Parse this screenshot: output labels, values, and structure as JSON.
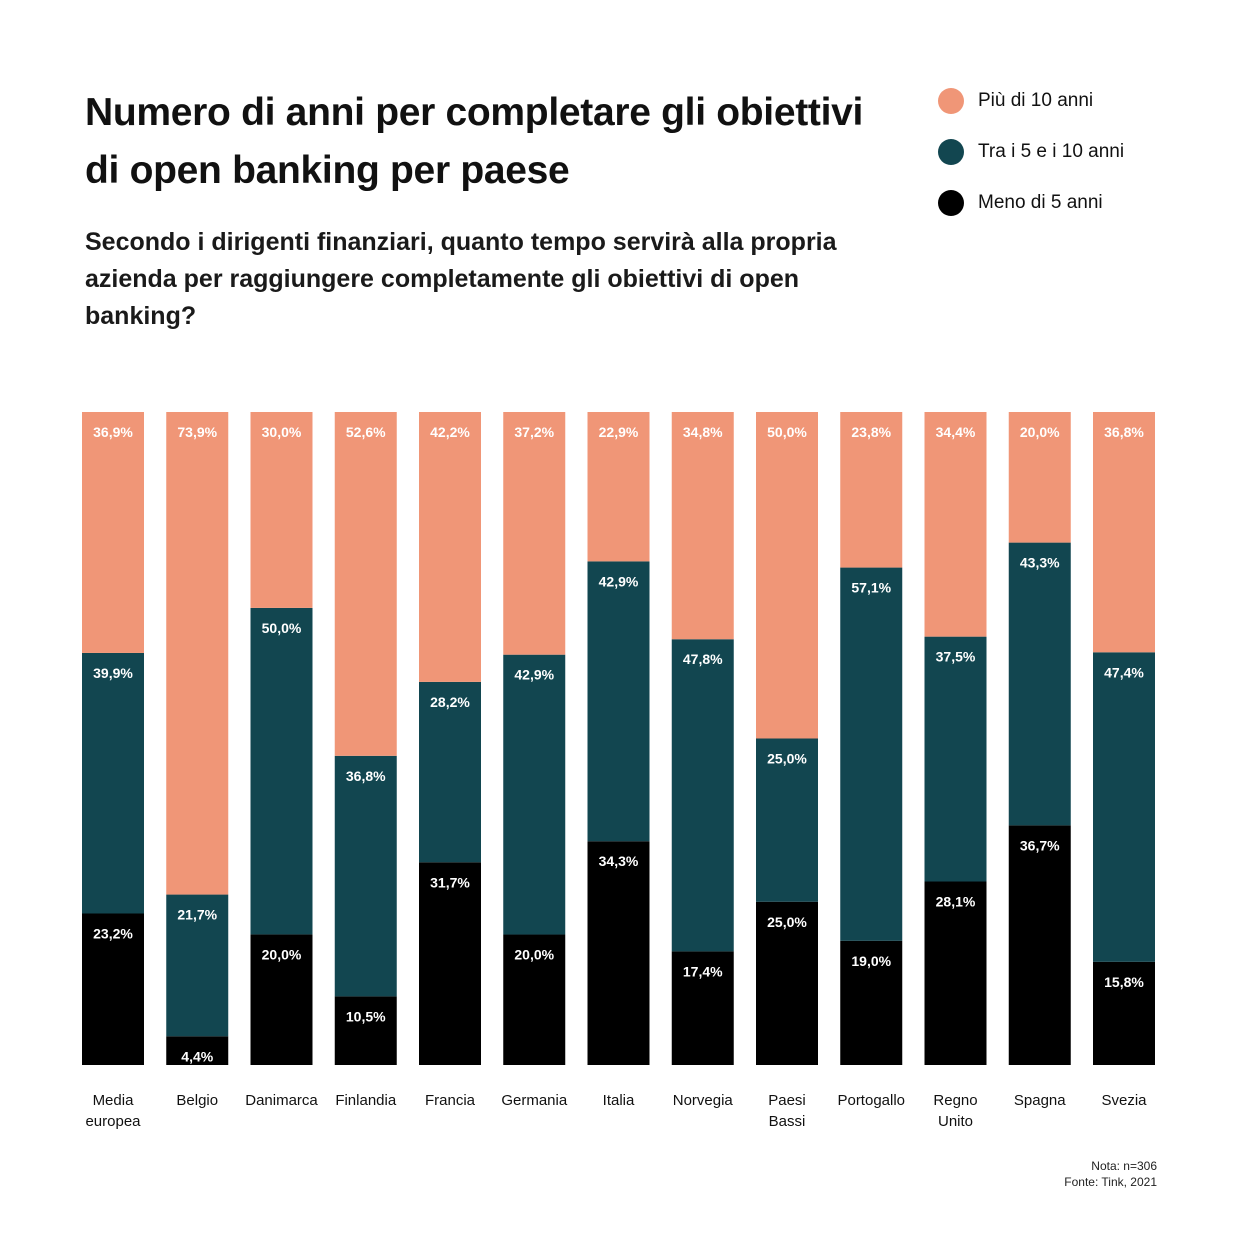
{
  "title": "Numero di anni per completare gli obiettivi di open banking per paese",
  "subtitle": "Secondo i dirigenti finanziari, quanto tempo servirà alla propria azienda per raggiungere completamente gli obiettivi di open banking?",
  "legend": [
    {
      "label": "Più di 10 anni",
      "color": "#f09677"
    },
    {
      "label": "Tra i 5 e i 10 anni",
      "color": "#124650"
    },
    {
      "label": "Meno di 5 anni",
      "color": "#000000"
    }
  ],
  "note": "Nota: n=306",
  "source": "Fonte: Tink, 2021",
  "chart_data": {
    "type": "bar",
    "stacked": true,
    "percent_stacked": true,
    "ylim": [
      0,
      100
    ],
    "categories": [
      [
        "Media",
        "europea"
      ],
      [
        "Belgio"
      ],
      [
        "Danimarca"
      ],
      [
        "Finlandia"
      ],
      [
        "Francia"
      ],
      [
        "Germania"
      ],
      [
        "Italia"
      ],
      [
        "Norvegia"
      ],
      [
        "Paesi",
        "Bassi"
      ],
      [
        "Portogallo"
      ],
      [
        "Regno",
        "Unito"
      ],
      [
        "Spagna"
      ],
      [
        "Svezia"
      ]
    ],
    "series": [
      {
        "name": "Meno di 5 anni",
        "color": "#000000",
        "values": [
          23.2,
          4.4,
          20.0,
          10.5,
          31.7,
          20.0,
          34.3,
          17.4,
          25.0,
          19.0,
          28.1,
          36.7,
          15.8
        ],
        "labels": [
          "23,2%",
          "4,4%",
          "20,0%",
          "10,5%",
          "31,7%",
          "20,0%",
          "34,3%",
          "17,4%",
          "25,0%",
          "19,0%",
          "28,1%",
          "36,7%",
          "15,8%"
        ]
      },
      {
        "name": "Tra i 5 e i 10 anni",
        "color": "#124650",
        "values": [
          39.9,
          21.7,
          50.0,
          36.8,
          28.2,
          42.9,
          42.9,
          47.8,
          25.0,
          57.1,
          37.5,
          43.3,
          47.4
        ],
        "labels": [
          "39,9%",
          "21,7%",
          "50,0%",
          "36,8%",
          "28,2%",
          "42,9%",
          "42,9%",
          "47,8%",
          "25,0%",
          "57,1%",
          "37,5%",
          "43,3%",
          "47,4%"
        ]
      },
      {
        "name": "Più di 10 anni",
        "color": "#f09677",
        "values": [
          36.9,
          73.9,
          30.0,
          52.6,
          42.2,
          37.2,
          22.9,
          34.8,
          50.0,
          23.8,
          34.4,
          20.0,
          36.8
        ],
        "labels": [
          "36,9%",
          "73,9%",
          "30,0%",
          "52,6%",
          "42,2%",
          "37,2%",
          "22,9%",
          "34,8%",
          "50,0%",
          "23,8%",
          "34,4%",
          "20,0%",
          "36,8%"
        ]
      }
    ]
  }
}
